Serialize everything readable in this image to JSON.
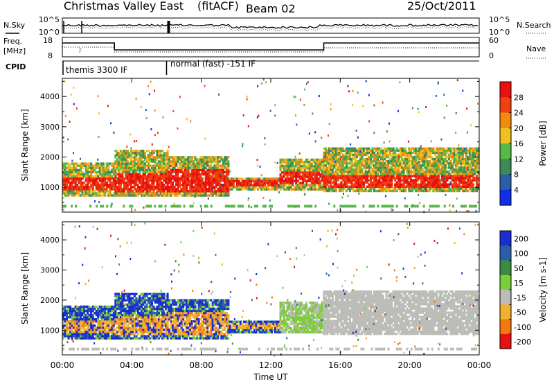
{
  "header": {
    "station": "Christmas Valley East",
    "mode": "(fitACF)",
    "beam": "Beam 02",
    "date": "25/Oct/2011"
  },
  "status_panels": {
    "nsky_label": "N.Sky",
    "nsky_ticks": [
      "10^5",
      "10^0"
    ],
    "nsearch_label": "N.Search",
    "nsearch_ticks": [
      "10^5",
      "10^0"
    ],
    "freq_label": "Freq.",
    "freq_unit": "[MHz]",
    "freq_ticks": [
      "18",
      "8"
    ],
    "nave_label": "Nave",
    "nave_ticks": [
      "60",
      "0"
    ],
    "cpid_label": "CPID",
    "cpid_segments": [
      "themis 3300 IF",
      "normal (fast) -151 IF"
    ],
    "cpid_change_hour": 6.0
  },
  "chart_data": [
    {
      "type": "heatmap",
      "title": "Power",
      "xlabel": "Time UT",
      "ylabel": "Slant Range [km]",
      "x_ticks": [
        "00:00",
        "04:00",
        "08:00",
        "12:00",
        "16:00",
        "20:00",
        "00:00"
      ],
      "x_range_hours": [
        0,
        24
      ],
      "y_ticks": [
        1000,
        2000,
        3000,
        4000
      ],
      "y_range_km": [
        180,
        4600
      ],
      "colorbar": {
        "label": "Power [dB]",
        "ticks": [
          4,
          8,
          12,
          16,
          20,
          24,
          28
        ],
        "range": [
          0,
          32
        ],
        "colors": [
          "#1030e8",
          "#2a5fa8",
          "#3c8c5a",
          "#58b848",
          "#f0c020",
          "#f08a10",
          "#f04010",
          "#e81010"
        ]
      }
    },
    {
      "type": "heatmap",
      "title": "Velocity",
      "xlabel": "Time UT",
      "ylabel": "Slant Range [km]",
      "x_ticks": [
        "00:00",
        "04:00",
        "08:00",
        "12:00",
        "16:00",
        "20:00",
        "00:00"
      ],
      "x_range_hours": [
        0,
        24
      ],
      "y_ticks": [
        1000,
        2000,
        3000,
        4000
      ],
      "y_range_km": [
        180,
        4600
      ],
      "colorbar": {
        "label": "Velocity [m s-1]",
        "ticks": [
          "200",
          "100",
          "50",
          "15",
          "-15",
          "-50",
          "-100",
          "-200"
        ],
        "colors": [
          "#1a2ed0",
          "#2a5fa8",
          "#3a8a40",
          "#7ccd3a",
          "#bcbcb8",
          "#f0b030",
          "#f07a10",
          "#e81010"
        ]
      }
    }
  ]
}
